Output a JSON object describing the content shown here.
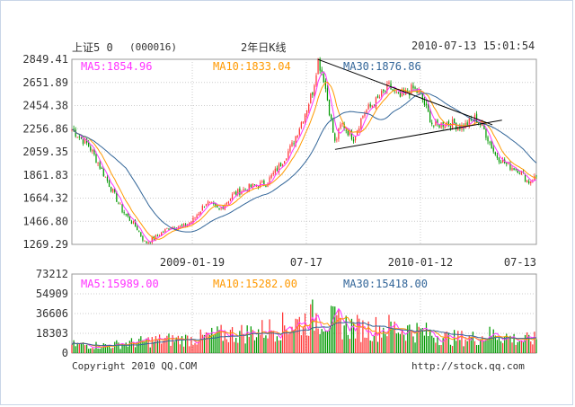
{
  "header": {
    "name": "上证5 0",
    "code": "(000016)",
    "period": "2年日K线",
    "datetime": "2010-07-13 15:01:54"
  },
  "price_ma": {
    "ma5": "MA5:1854.96",
    "ma10": "MA10:1833.04",
    "ma30": "MA30:1876.86"
  },
  "volume_ma": {
    "ma5": "MA5:15989.00",
    "ma10": "MA10:15282.00",
    "ma30": "MA30:15418.00"
  },
  "footer": {
    "copyright": "Copyright 2010 QQ.COM",
    "url": "http://stock.qq.com"
  },
  "colors": {
    "up": "#ff3333",
    "down": "#009900",
    "ma5": "#ff33ff",
    "ma10": "#ff9900",
    "ma30": "#336699",
    "grid": "#cccccc"
  },
  "chart_data": [
    {
      "type": "candlestick",
      "yticks": [
        "2849.41",
        "2651.89",
        "2454.38",
        "2256.86",
        "2059.35",
        "1861.83",
        "1664.32",
        "1466.80",
        "1269.29"
      ],
      "ylim": [
        1269.29,
        2849.41
      ],
      "xticks": [
        "2009-01-19",
        "07-17",
        "2010-01-12",
        "07-13"
      ],
      "x_range": [
        "2008-07-14",
        "2010-07-13"
      ],
      "close_path": [
        [
          "2008-07-14",
          2250
        ],
        [
          "2008-08-10",
          2110
        ],
        [
          "2008-09-05",
          1840
        ],
        [
          "2008-10-01",
          1560
        ],
        [
          "2008-10-25",
          1400
        ],
        [
          "2008-11-06",
          1280
        ],
        [
          "2008-11-25",
          1340
        ],
        [
          "2008-12-15",
          1420
        ],
        [
          "2009-01-05",
          1420
        ],
        [
          "2009-01-19",
          1470
        ],
        [
          "2009-02-10",
          1630
        ],
        [
          "2009-03-02",
          1560
        ],
        [
          "2009-03-25",
          1700
        ],
        [
          "2009-04-20",
          1760
        ],
        [
          "2009-05-15",
          1790
        ],
        [
          "2009-06-05",
          1940
        ],
        [
          "2009-06-25",
          2120
        ],
        [
          "2009-07-17",
          2420
        ],
        [
          "2009-07-28",
          2600
        ],
        [
          "2009-08-04",
          2849
        ],
        [
          "2009-08-13",
          2700
        ],
        [
          "2009-08-31",
          2130
        ],
        [
          "2009-09-10",
          2300
        ],
        [
          "2009-09-29",
          2180
        ],
        [
          "2009-10-15",
          2390
        ],
        [
          "2009-11-05",
          2500
        ],
        [
          "2009-11-24",
          2620
        ],
        [
          "2009-12-10",
          2520
        ],
        [
          "2009-12-31",
          2600
        ],
        [
          "2010-01-12",
          2550
        ],
        [
          "2010-02-01",
          2280
        ],
        [
          "2010-02-25",
          2310
        ],
        [
          "2010-03-20",
          2270
        ],
        [
          "2010-04-08",
          2350
        ],
        [
          "2010-04-20",
          2270
        ],
        [
          "2010-05-10",
          2030
        ],
        [
          "2010-05-30",
          1940
        ],
        [
          "2010-06-15",
          1910
        ],
        [
          "2010-06-30",
          1800
        ],
        [
          "2010-07-13",
          1850
        ]
      ],
      "annotations": "symmetric triangle trendlines drawn from the 2009-08 high"
    },
    {
      "type": "bar",
      "name": "volume",
      "yticks": [
        "73212",
        "54909",
        "36606",
        "18303",
        "0"
      ],
      "ylim": [
        0,
        73212
      ],
      "volume_path": [
        [
          "2008-07-14",
          8000
        ],
        [
          "2008-09-05",
          7000
        ],
        [
          "2008-10-25",
          10000
        ],
        [
          "2008-11-25",
          12000
        ],
        [
          "2009-01-19",
          13000
        ],
        [
          "2009-03-02",
          17000
        ],
        [
          "2009-04-20",
          19000
        ],
        [
          "2009-06-05",
          24000
        ],
        [
          "2009-07-17",
          30000
        ],
        [
          "2009-08-04",
          35000
        ],
        [
          "2009-08-31",
          28000
        ],
        [
          "2009-10-15",
          22000
        ],
        [
          "2009-11-24",
          24000
        ],
        [
          "2010-01-12",
          20000
        ],
        [
          "2010-02-25",
          14000
        ],
        [
          "2010-04-08",
          14000
        ],
        [
          "2010-05-10",
          18000
        ],
        [
          "2010-06-15",
          12000
        ],
        [
          "2010-07-13",
          13000
        ]
      ]
    }
  ]
}
